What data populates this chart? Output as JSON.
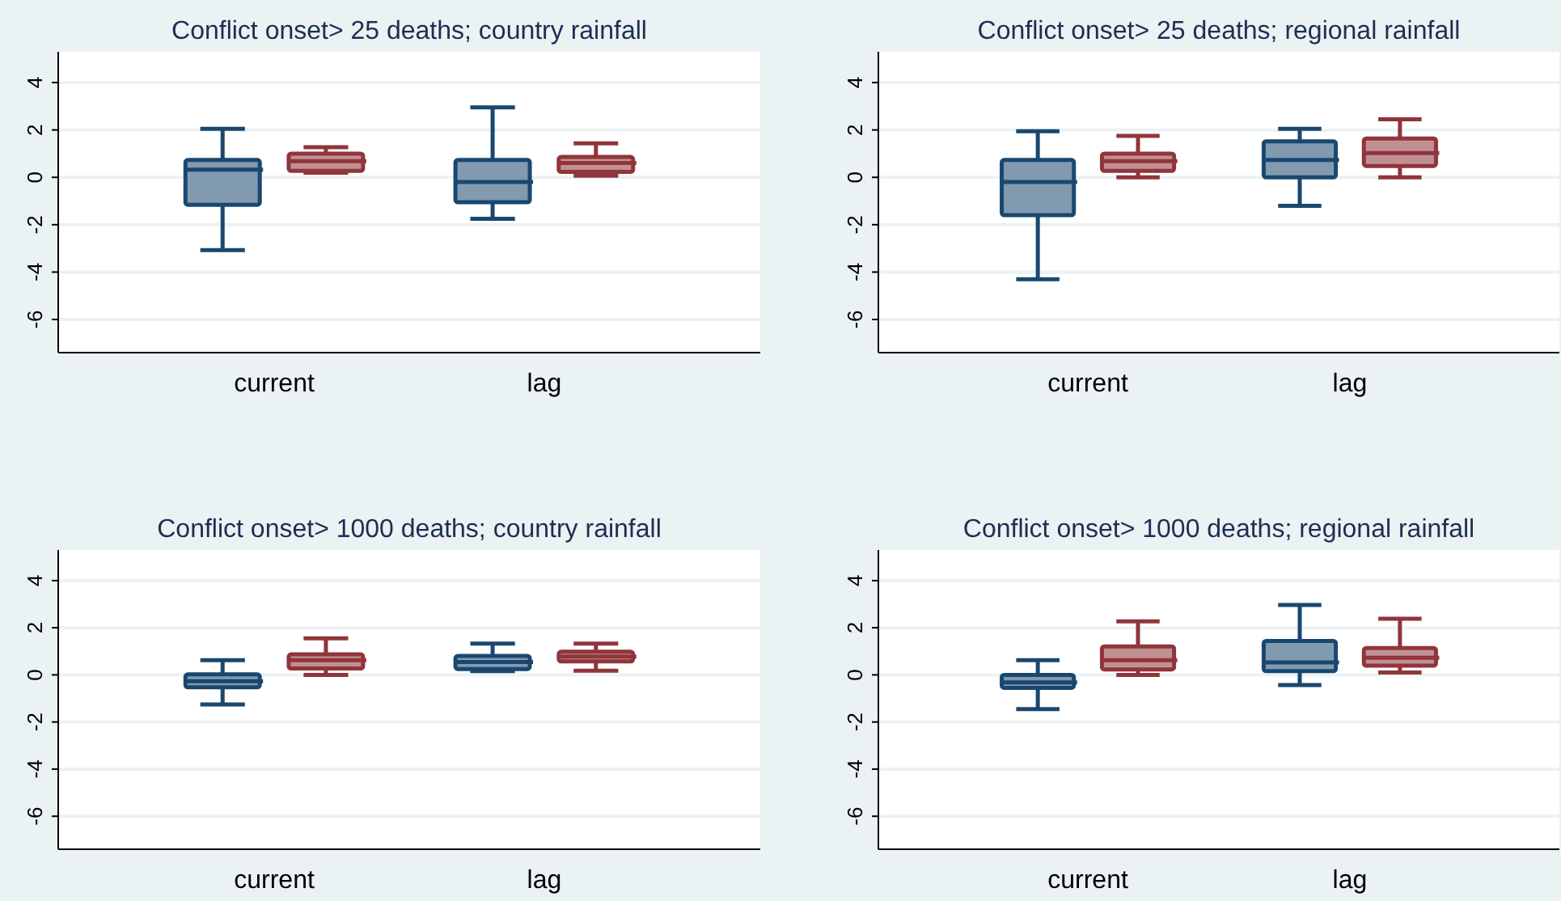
{
  "chart_data": [
    {
      "type": "box",
      "title": "Conflict onset> 25 deaths; country rainfall",
      "categories": [
        "current",
        "lag"
      ],
      "ylim": [
        -7.4,
        5.3
      ],
      "yticks": [
        -6,
        -4,
        -2,
        0,
        2,
        4
      ],
      "grid": "y",
      "series": [
        {
          "color": "#1a476f",
          "boxes": [
            {
              "low": -3.07,
              "q1": -1.16,
              "median": 0.32,
              "q3": 0.73,
              "high": 2.05
            },
            {
              "low": -1.75,
              "q1": -1.05,
              "median": -0.2,
              "q3": 0.73,
              "high": 2.95
            }
          ]
        },
        {
          "color": "#90353b",
          "boxes": [
            {
              "low": 0.2,
              "q1": 0.27,
              "median": 0.68,
              "q3": 1.0,
              "high": 1.27
            },
            {
              "low": 0.07,
              "q1": 0.23,
              "median": 0.61,
              "q3": 0.86,
              "high": 1.43
            }
          ]
        }
      ]
    },
    {
      "type": "box",
      "title": "Conflict onset> 25 deaths; regional rainfall",
      "categories": [
        "current",
        "lag"
      ],
      "ylim": [
        -7.4,
        5.3
      ],
      "yticks": [
        -6,
        -4,
        -2,
        0,
        2,
        4
      ],
      "grid": "y",
      "series": [
        {
          "color": "#1a476f",
          "boxes": [
            {
              "low": -4.3,
              "q1": -1.6,
              "median": -0.2,
              "q3": 0.73,
              "high": 1.95
            },
            {
              "low": -1.2,
              "q1": 0.0,
              "median": 0.73,
              "q3": 1.52,
              "high": 2.05
            }
          ]
        },
        {
          "color": "#90353b",
          "boxes": [
            {
              "low": 0.0,
              "q1": 0.27,
              "median": 0.68,
              "q3": 1.0,
              "high": 1.75
            },
            {
              "low": 0.0,
              "q1": 0.48,
              "median": 1.02,
              "q3": 1.64,
              "high": 2.45
            }
          ]
        }
      ]
    },
    {
      "type": "box",
      "title": "Conflict onset> 1000 deaths; country rainfall",
      "categories": [
        "current",
        "lag"
      ],
      "ylim": [
        -7.4,
        5.3
      ],
      "yticks": [
        -6,
        -4,
        -2,
        0,
        2,
        4
      ],
      "grid": "y",
      "series": [
        {
          "color": "#1a476f",
          "boxes": [
            {
              "low": -1.26,
              "q1": -0.53,
              "median": -0.27,
              "q3": 0.02,
              "high": 0.62
            },
            {
              "low": 0.16,
              "q1": 0.25,
              "median": 0.55,
              "q3": 0.8,
              "high": 1.33
            }
          ]
        },
        {
          "color": "#90353b",
          "boxes": [
            {
              "low": 0.0,
              "q1": 0.27,
              "median": 0.62,
              "q3": 0.87,
              "high": 1.55
            },
            {
              "low": 0.18,
              "q1": 0.57,
              "median": 0.78,
              "q3": 0.98,
              "high": 1.33
            }
          ]
        }
      ]
    },
    {
      "type": "box",
      "title": "Conflict onset> 1000 deaths; regional rainfall",
      "categories": [
        "current",
        "lag"
      ],
      "ylim": [
        -7.4,
        5.3
      ],
      "yticks": [
        -6,
        -4,
        -2,
        0,
        2,
        4
      ],
      "grid": "y",
      "series": [
        {
          "color": "#1a476f",
          "boxes": [
            {
              "low": -1.45,
              "q1": -0.55,
              "median": -0.32,
              "q3": 0.0,
              "high": 0.62
            },
            {
              "low": -0.43,
              "q1": 0.16,
              "median": 0.53,
              "q3": 1.44,
              "high": 2.97
            }
          ]
        },
        {
          "color": "#90353b",
          "boxes": [
            {
              "low": 0.0,
              "q1": 0.23,
              "median": 0.62,
              "q3": 1.21,
              "high": 2.27
            },
            {
              "low": 0.1,
              "q1": 0.39,
              "median": 0.73,
              "q3": 1.14,
              "high": 2.38
            }
          ]
        }
      ]
    }
  ]
}
